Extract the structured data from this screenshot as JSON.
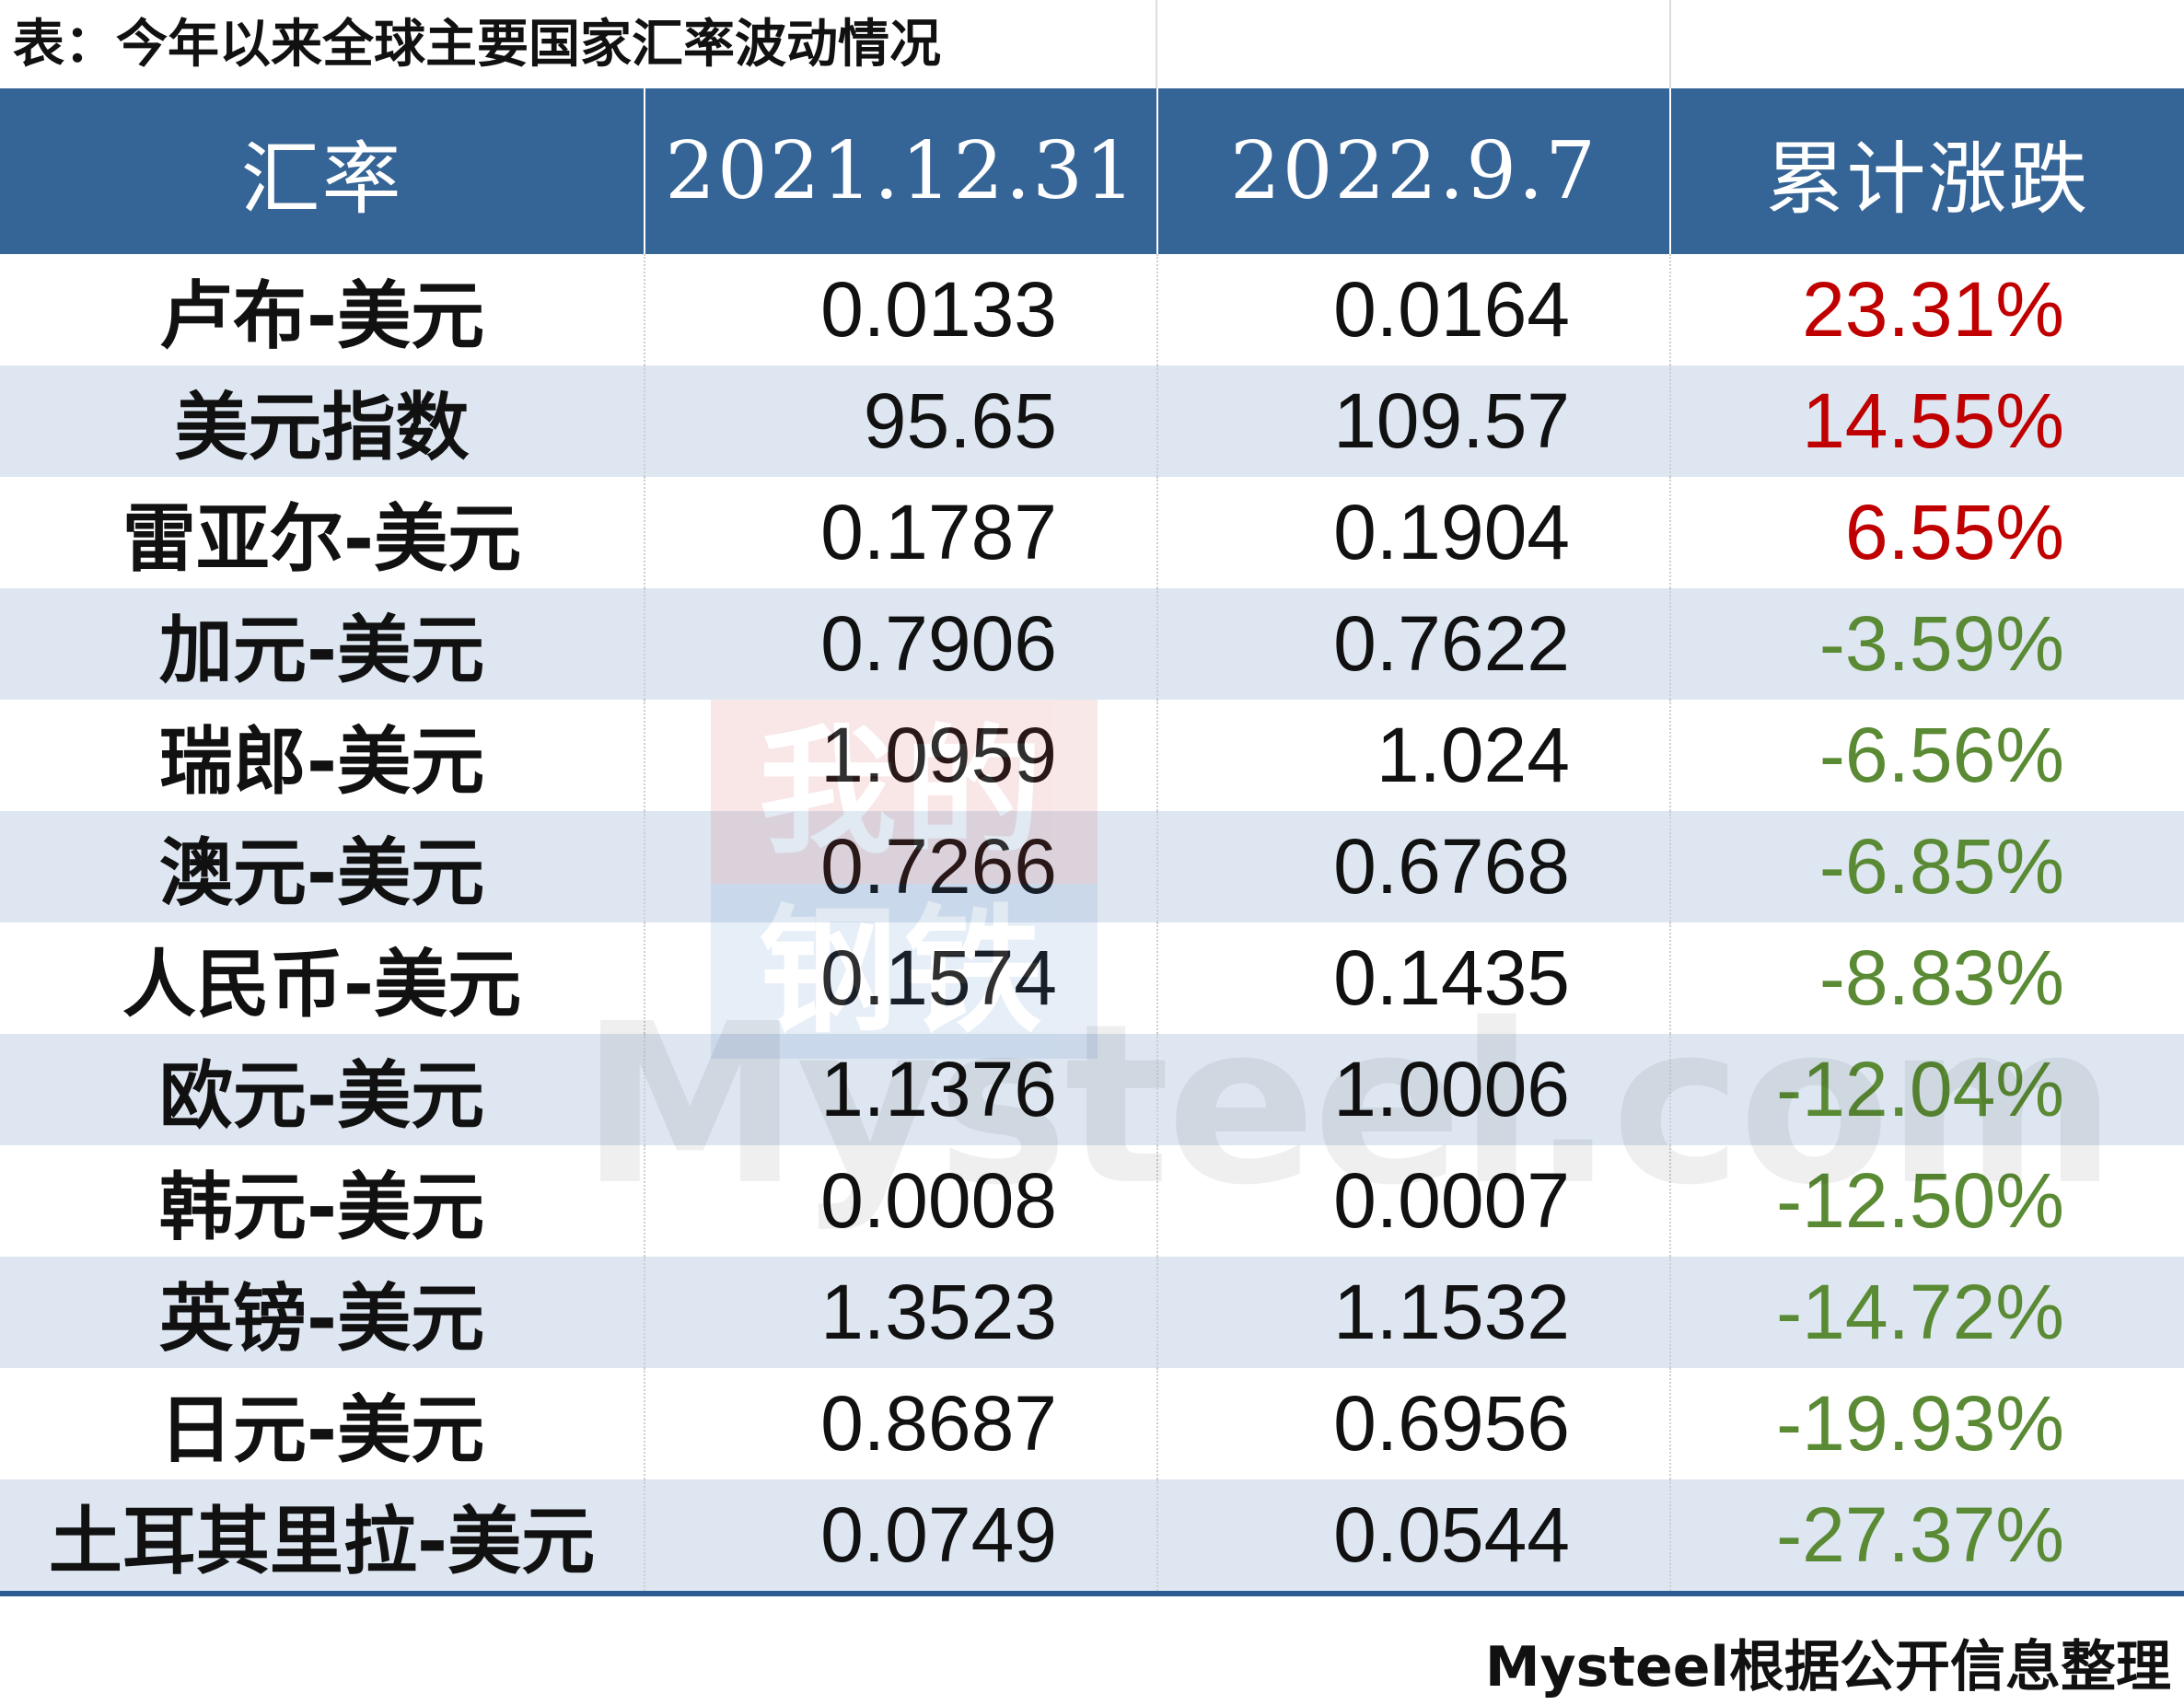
{
  "title": "表：今年以来全球主要国家汇率波动情况",
  "watermark": {
    "logo_top": "我的",
    "logo_bottom": "钢铁",
    "text": "Mysteel.com"
  },
  "colors": {
    "header_bg": "#356496",
    "row_alt_bg": "#dde6f1",
    "positive": "#c00000",
    "negative": "#5a8a34"
  },
  "chart_data": {
    "type": "table",
    "title": "表：今年以来全球主要国家汇率波动情况",
    "columns": [
      "汇率",
      "2021.12.31",
      "2022.9.7",
      "累计涨跌"
    ],
    "rows": [
      {
        "name": "卢布-美元",
        "v2021": "0.0133",
        "v2022": "0.0164",
        "change": "23.31%"
      },
      {
        "name": "美元指数",
        "v2021": "95.65",
        "v2022": "109.57",
        "change": "14.55%"
      },
      {
        "name": "雷亚尔-美元",
        "v2021": "0.1787",
        "v2022": "0.1904",
        "change": "6.55%"
      },
      {
        "name": "加元-美元",
        "v2021": "0.7906",
        "v2022": "0.7622",
        "change": "-3.59%"
      },
      {
        "name": "瑞郎-美元",
        "v2021": "1.0959",
        "v2022": "1.024",
        "change": "-6.56%"
      },
      {
        "name": "澳元-美元",
        "v2021": "0.7266",
        "v2022": "0.6768",
        "change": "-6.85%"
      },
      {
        "name": "人民币-美元",
        "v2021": "0.1574",
        "v2022": "0.1435",
        "change": "-8.83%"
      },
      {
        "name": "欧元-美元",
        "v2021": "1.1376",
        "v2022": "1.0006",
        "change": "-12.04%"
      },
      {
        "name": "韩元-美元",
        "v2021": "0.0008",
        "v2022": "0.0007",
        "change": "-12.50%"
      },
      {
        "name": "英镑-美元",
        "v2021": "1.3523",
        "v2022": "1.1532",
        "change": "-14.72%"
      },
      {
        "name": "日元-美元",
        "v2021": "0.8687",
        "v2022": "0.6956",
        "change": "-19.93%"
      },
      {
        "name": "土耳其里拉-美元",
        "v2021": "0.0749",
        "v2022": "0.0544",
        "change": "-27.37%"
      }
    ]
  },
  "source": "Mysteel根据公开信息整理"
}
